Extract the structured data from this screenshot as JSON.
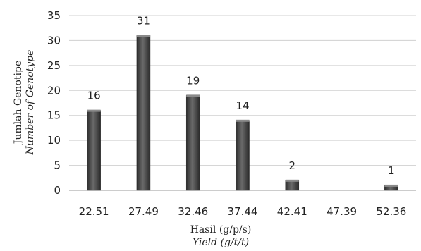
{
  "chart_data": {
    "type": "bar",
    "categories": [
      "22.51",
      "27.49",
      "32.46",
      "37.44",
      "42.41",
      "47.39",
      "52.36"
    ],
    "values": [
      16,
      31,
      19,
      14,
      2,
      0,
      1
    ],
    "data_labels": [
      "16",
      "31",
      "19",
      "14",
      "2",
      "",
      "1"
    ],
    "title": "",
    "xlabel": "Hasil (g/p/s)",
    "xlabel_italic": "Yield (g/t/t)",
    "ylabel": "Jumlah Genotipe",
    "ylabel_italic": "Number of Genotype",
    "ylim": [
      0,
      35
    ],
    "yticks": [
      "0",
      "5",
      "10",
      "15",
      "20",
      "25",
      "30",
      "35"
    ],
    "grid": true,
    "bar_color": "#4a4a4a",
    "grid_color": "#d0d0d0"
  }
}
